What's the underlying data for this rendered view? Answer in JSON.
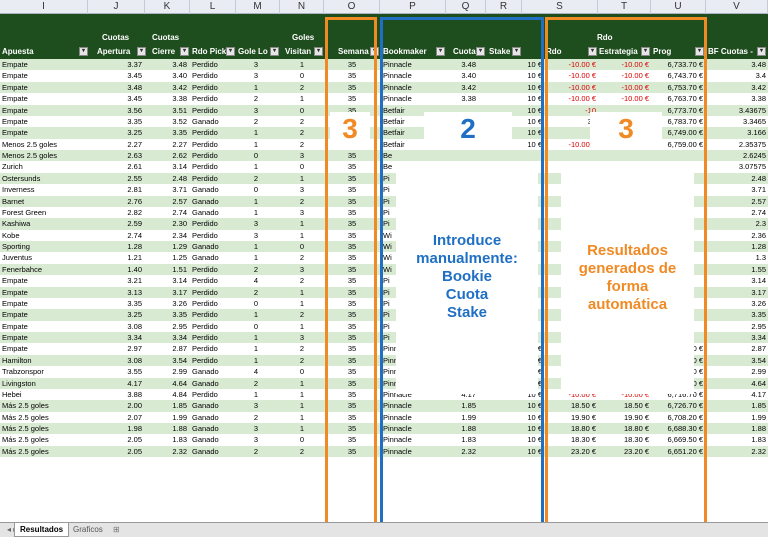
{
  "colors": {
    "header_bg": "#1e4d1e",
    "row_green": "#d9ead3",
    "orange": "#f08a24",
    "blue": "#1f6fc4",
    "neg": "#dd0000"
  },
  "col_letters": [
    "I",
    "J",
    "K",
    "L",
    "M",
    "N",
    "O",
    "P",
    "Q",
    "R",
    "S",
    "T",
    "U",
    "V"
  ],
  "headers": {
    "apuesta": "Apuesta",
    "cuotas_apertura_top": "Cuotas",
    "cuotas_apertura": "Apertura",
    "cuotas_cierre_top": "Cuotas",
    "cuotas_cierre": "Cierre",
    "rdo_pick": "Rdo Pick",
    "goles_local": "Gole Lo",
    "goles_visitante_top": "Goles",
    "goles_visitante": "Visitan",
    "semana": "Semana",
    "bookmaker": "Bookmaker",
    "cuota": "Cuota",
    "stake": "Stake",
    "rdo_group": "Rdo",
    "rdo": "Rdo",
    "estrategia": "Estrategia",
    "prog": "Prog",
    "bf_cuotas": "BF Cuotas -"
  },
  "rows": [
    [
      "Empate",
      "3.37",
      "3.48",
      "Perdido",
      "3",
      "1",
      "35",
      "Pinnacle",
      "3.48",
      "10 €",
      "-10.00 €",
      "-10.00 €",
      "6,733.70 €",
      "3.48"
    ],
    [
      "Empate",
      "3.45",
      "3.40",
      "Perdido",
      "3",
      "0",
      "35",
      "Pinnacle",
      "3.40",
      "10 €",
      "-10.00 €",
      "-10.00 €",
      "6,743.70 €",
      "3.4"
    ],
    [
      "Empate",
      "3.48",
      "3.42",
      "Perdido",
      "1",
      "2",
      "35",
      "Pinnacle",
      "3.42",
      "10 €",
      "-10.00 €",
      "-10.00 €",
      "6,753.70 €",
      "3.42"
    ],
    [
      "Empate",
      "3.45",
      "3.38",
      "Perdido",
      "2",
      "1",
      "35",
      "Pinnacle",
      "3.38",
      "10 €",
      "-10.00 €",
      "-10.00 €",
      "6,763.70 €",
      "3.38"
    ],
    [
      "Empate",
      "3.56",
      "3.51",
      "Perdido",
      "3",
      "0",
      "35",
      "Betfair",
      "",
      "10 €",
      "-10",
      "",
      "6,773.70 €",
      "3.43675"
    ],
    [
      "Empate",
      "3.35",
      "3.52",
      "Ganado",
      "2",
      "2",
      "35",
      "Betfair",
      "",
      "10 €",
      "34",
      "",
      "6,783.70 €",
      "3.3465"
    ],
    [
      "Empate",
      "3.25",
      "3.35",
      "Perdido",
      "1",
      "2",
      "35",
      "Betfair",
      "",
      "10 €",
      "",
      "",
      "6,749.00 €",
      "3.166"
    ],
    [
      "Menos 2.5 goles",
      "2.27",
      "2.27",
      "Perdido",
      "1",
      "2",
      "35",
      "Betfair",
      "2.43",
      "10 €",
      "-10.00 €",
      "",
      "6,759.00 €",
      "2.35375"
    ],
    [
      "Menos 2.5 goles",
      "2.63",
      "2.62",
      "Perdido",
      "0",
      "3",
      "35",
      "Be",
      "",
      "",
      "",
      "",
      "",
      "2.6245"
    ],
    [
      "Zurich",
      "2.61",
      "3.14",
      "Perdido",
      "1",
      "0",
      "35",
      "Be",
      "",
      "",
      "",
      "",
      "",
      "3.07575"
    ],
    [
      "Ostersunds",
      "2.55",
      "2.48",
      "Perdido",
      "2",
      "1",
      "35",
      "Pi",
      "",
      "",
      "",
      "",
      "",
      "2.48"
    ],
    [
      "Inverness",
      "2.81",
      "3.71",
      "Ganado",
      "0",
      "3",
      "35",
      "Pi",
      "",
      "",
      "",
      "",
      "",
      "3.71"
    ],
    [
      "Barnet",
      "2.76",
      "2.57",
      "Ganado",
      "1",
      "2",
      "35",
      "Pi",
      "",
      "",
      "",
      "",
      "",
      "2.57"
    ],
    [
      "Forest Green",
      "2.82",
      "2.74",
      "Ganado",
      "1",
      "3",
      "35",
      "Pi",
      "",
      "",
      "",
      "",
      "",
      "2.74"
    ],
    [
      "Kashiwa",
      "2.59",
      "2.30",
      "Perdido",
      "3",
      "1",
      "35",
      "Pi",
      "",
      "",
      "",
      "",
      "",
      "2.3"
    ],
    [
      "Kobe",
      "2.74",
      "2.34",
      "Perdido",
      "3",
      "1",
      "35",
      "Wi",
      "",
      "",
      "",
      "",
      "",
      "2.36"
    ],
    [
      "Sporting",
      "1.28",
      "1.29",
      "Ganado",
      "1",
      "0",
      "35",
      "Wi",
      "",
      "",
      "",
      "",
      "",
      "1.28"
    ],
    [
      "Juventus",
      "1.21",
      "1.25",
      "Ganado",
      "1",
      "2",
      "35",
      "Wi",
      "",
      "",
      "",
      "",
      "",
      "1.3"
    ],
    [
      "Fenerbahce",
      "1.40",
      "1.51",
      "Perdido",
      "2",
      "3",
      "35",
      "Wi",
      "",
      "",
      "",
      "",
      "",
      "1.55"
    ],
    [
      "Empate",
      "3.21",
      "3.14",
      "Perdido",
      "4",
      "2",
      "35",
      "Pi",
      "",
      "",
      "",
      "",
      "",
      "3.14"
    ],
    [
      "Empate",
      "3.13",
      "3.17",
      "Perdido",
      "2",
      "1",
      "35",
      "Pi",
      "",
      "",
      "",
      "",
      "",
      "3.17"
    ],
    [
      "Empate",
      "3.35",
      "3.26",
      "Perdido",
      "0",
      "1",
      "35",
      "Pi",
      "",
      "",
      "",
      "",
      "",
      "3.26"
    ],
    [
      "Empate",
      "3.25",
      "3.35",
      "Perdido",
      "1",
      "2",
      "35",
      "Pi",
      "",
      "",
      "",
      "",
      "",
      "3.35"
    ],
    [
      "Empate",
      "3.08",
      "2.95",
      "Perdido",
      "0",
      "1",
      "35",
      "Pi",
      "",
      "",
      "",
      "",
      "",
      "2.95"
    ],
    [
      "Empate",
      "3.34",
      "3.34",
      "Perdido",
      "1",
      "3",
      "35",
      "Pi",
      "",
      "",
      "",
      "",
      "",
      "3.34"
    ],
    [
      "Empate",
      "2.97",
      "2.87",
      "Perdido",
      "1",
      "2",
      "35",
      "Pinnacle",
      "2.87",
      "10 €",
      "-10.00 €",
      "-10.00 €",
      "6,773.00 €",
      "2.87"
    ],
    [
      "Hamilton",
      "3.08",
      "3.54",
      "Perdido",
      "1",
      "2",
      "35",
      "Pinnacle",
      "3.54",
      "10 €",
      "-10.00 €",
      "-10.00 €",
      "6,783.00 €",
      "3.54"
    ],
    [
      "Trabzonspor",
      "3.55",
      "2.99",
      "Ganado",
      "4",
      "0",
      "35",
      "Pinnacle",
      "2.99",
      "10 €",
      "29.90 €",
      "29.90 €",
      "6,793.00 €",
      "2.99"
    ],
    [
      "Livingston",
      "4.17",
      "4.64",
      "Ganado",
      "2",
      "1",
      "35",
      "Pinnacle",
      "4.64",
      "10 €",
      "46.40 €",
      "46.40 €",
      "6,763.10 €",
      "4.64"
    ],
    [
      "Hebei",
      "3.88",
      "4.84",
      "Perdido",
      "1",
      "1",
      "35",
      "Pinnacle",
      "4.17",
      "10 €",
      "-10.00 €",
      "-10.00 €",
      "6,716.70 €",
      "4.17"
    ],
    [
      "Más 2.5 goles",
      "2.00",
      "1.85",
      "Ganado",
      "3",
      "1",
      "35",
      "Pinnacle",
      "1.85",
      "10 €",
      "18.50 €",
      "18.50 €",
      "6,726.70 €",
      "1.85"
    ],
    [
      "Más 2.5 goles",
      "2.07",
      "1.99",
      "Ganado",
      "2",
      "1",
      "35",
      "Pinnacle",
      "1.99",
      "10 €",
      "19.90 €",
      "19.90 €",
      "6,708.20 €",
      "1.99"
    ],
    [
      "Más 2.5 goles",
      "1.98",
      "1.88",
      "Ganado",
      "3",
      "1",
      "35",
      "Pinnacle",
      "1.88",
      "10 €",
      "18.80 €",
      "18.80 €",
      "6,688.30 €",
      "1.88"
    ],
    [
      "Más 2.5 goles",
      "2.05",
      "1.83",
      "Ganado",
      "3",
      "0",
      "35",
      "Pinnacle",
      "1.83",
      "10 €",
      "18.30 €",
      "18.30 €",
      "6,669.50 €",
      "1.83"
    ],
    [
      "Más 2.5 goles",
      "2.05",
      "2.32",
      "Ganado",
      "2",
      "2",
      "35",
      "Pinnacle",
      "2.32",
      "10 €",
      "23.20 €",
      "23.20 €",
      "6,651.20 €",
      "2.32"
    ]
  ],
  "tabs": [
    "Resultados",
    "Graficos"
  ],
  "overlay": {
    "num_semana": "3",
    "num_manual": "2",
    "num_auto": "3",
    "manual_text": [
      "Introduce",
      "manualmente:",
      "Bookie",
      "Cuota",
      "Stake"
    ],
    "auto_text": [
      "Resultados",
      "generados de",
      "forma",
      "automática"
    ]
  }
}
